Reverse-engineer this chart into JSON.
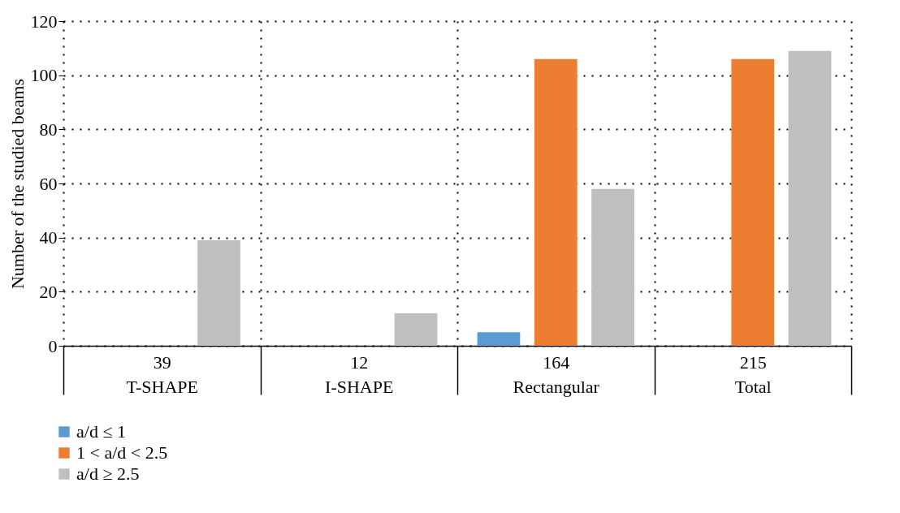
{
  "chart_data": {
    "type": "bar",
    "ylabel": "Number of the studied beams",
    "categories": [
      "39\nT-SHAPE",
      "12\nI-SHAPE",
      "164\nRectangular",
      "215\nTotal"
    ],
    "series": [
      {
        "name": "a/d ≤ 1",
        "color": "#5b9bd5",
        "values": [
          0,
          0,
          5,
          0
        ]
      },
      {
        "name": "1 < a/d < 2.5",
        "color": "#ed7d31",
        "values": [
          0,
          0,
          106,
          106
        ]
      },
      {
        "name": "a/d ≥ 2.5",
        "color": "#bfbfbf",
        "values": [
          39,
          12,
          58,
          109
        ]
      }
    ],
    "ylim": [
      0,
      120
    ],
    "yticks": [
      0,
      20,
      40,
      60,
      80,
      100,
      120
    ],
    "grid": true,
    "legend": "bottom left"
  }
}
